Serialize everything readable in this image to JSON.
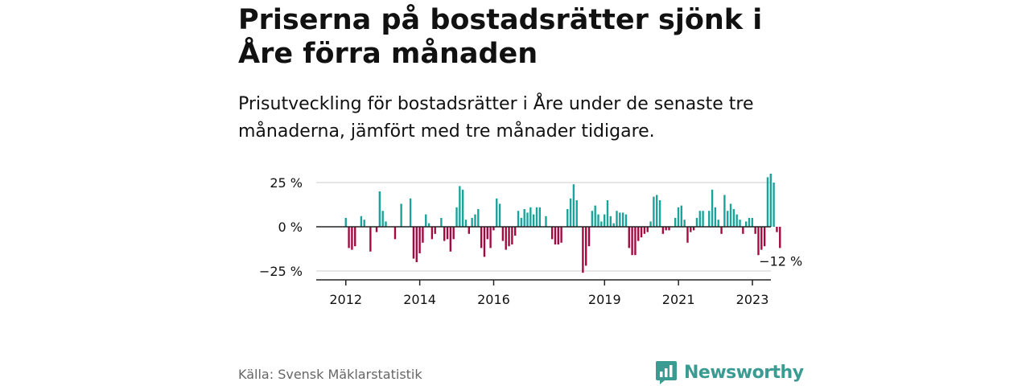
{
  "header": {
    "title": "Priserna på bostadsrätter sjönk i Åre förra månaden",
    "subtitle": "Prisutveckling för bostadsrätter i Åre under de senaste tre månaderna, jämfört med tre månader tidigare."
  },
  "footer": {
    "source": "Källa: Svensk Mäklarstatistik",
    "brand": "Newsworthy",
    "brand_icon": "bar-chart-logo-icon"
  },
  "colors": {
    "positive": "#1aa39a",
    "negative": "#a3083f",
    "grid": "#cccccc",
    "axis": "#222222",
    "brand": "#3a9b93"
  },
  "chart_data": {
    "type": "bar",
    "x_start": 2012,
    "x_step": 0.0833,
    "xlim": [
      2011.2,
      2023.5
    ],
    "ylim": [
      -30,
      31
    ],
    "yticks": [
      25,
      0,
      -25
    ],
    "ytick_labels": [
      "25 %",
      "0 %",
      "−25 %"
    ],
    "xticks": [
      2012,
      2014,
      2016,
      2019,
      2021,
      2023
    ],
    "xtick_labels": [
      "2012",
      "2014",
      "2016",
      "2019",
      "2021",
      "2023"
    ],
    "grid": true,
    "last_value_label": "−12 %",
    "values": [
      5,
      -12,
      -13,
      -11,
      0,
      6,
      4,
      0,
      -14,
      0,
      -3,
      20,
      9,
      3,
      0,
      0,
      -7,
      0,
      13,
      0,
      0,
      16,
      -18,
      -20,
      -15,
      -9,
      7,
      2,
      -7,
      -4,
      0,
      5,
      -8,
      -7,
      -14,
      -7,
      11,
      23,
      21,
      4,
      -4,
      5,
      7,
      10,
      -12,
      -17,
      -7,
      -12,
      -2,
      16,
      13,
      -8,
      -13,
      -11,
      -10,
      -5,
      9,
      5,
      10,
      8,
      11,
      7,
      11,
      11,
      0,
      6,
      0,
      -7,
      -10,
      -10,
      -9,
      0,
      10,
      16,
      24,
      15,
      0,
      -26,
      -22,
      -11,
      9,
      12,
      7,
      3,
      7,
      15,
      6,
      2,
      9,
      8,
      8,
      7,
      -12,
      -16,
      -16,
      -8,
      -6,
      -4,
      -3,
      3,
      17,
      18,
      15,
      -4,
      -2,
      -2,
      0,
      5,
      11,
      12,
      4,
      -9,
      -3,
      -2,
      5,
      9,
      9,
      0,
      9,
      21,
      11,
      4,
      -4,
      18,
      9,
      13,
      10,
      7,
      4,
      -4,
      3,
      5,
      5,
      -4,
      -16,
      -13,
      -11,
      28,
      30,
      25,
      -3,
      -12
    ]
  }
}
